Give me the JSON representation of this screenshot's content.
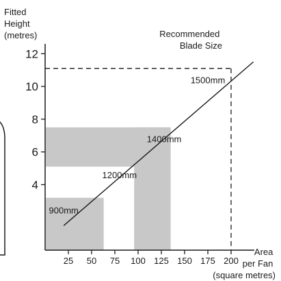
{
  "chart_data": {
    "type": "line",
    "title": "",
    "ylabel_lines": [
      "Fitted",
      "Height",
      "(metres)"
    ],
    "xlabel_lines": [
      "Area",
      "per Fan",
      "(square metres)"
    ],
    "xlim": [
      0,
      225
    ],
    "ylim": [
      0,
      12.6
    ],
    "x_ticks": [
      25,
      50,
      75,
      100,
      125,
      150,
      175,
      200
    ],
    "y_ticks": [
      4,
      6,
      8,
      10,
      12
    ],
    "series": [
      {
        "name": "Recommended Blade Size",
        "points": [
          [
            20,
            1.5
          ],
          [
            224,
            11.5
          ]
        ]
      }
    ],
    "series_label_lines": [
      "Recommended",
      "Blade Size"
    ],
    "regions": [
      {
        "label": "900mm",
        "x": [
          0,
          63
        ],
        "y": [
          0,
          3.2
        ]
      },
      {
        "label": "1200mm",
        "x": [
          0,
          95
        ],
        "y": [
          5.1,
          7.5
        ]
      },
      {
        "label": "1200mm",
        "x": [
          95,
          95
        ],
        "y": [
          0,
          5.1
        ]
      },
      {
        "label": "1400mm",
        "x": [
          95,
          135
        ],
        "y": [
          0,
          7.5
        ]
      },
      {
        "label": "1400mm",
        "x": [
          0,
          95
        ],
        "y": [
          5.1,
          7.5
        ]
      },
      {
        "label": "1500mm",
        "x": [
          135,
          200
        ],
        "y": [
          0,
          11.1
        ]
      }
    ],
    "region_labels": [
      {
        "text": "900mm",
        "x": 20,
        "y": 2.25
      },
      {
        "text": "1200mm",
        "x": 80,
        "y": 4.4
      },
      {
        "text": "1400mm",
        "x": 128,
        "y": 6.6
      },
      {
        "text": "1500mm",
        "x": 175,
        "y": 10.2
      }
    ],
    "reference_lines": [
      {
        "axis": "y",
        "value": 11.1,
        "style": "dashed"
      },
      {
        "axis": "x",
        "value": 200,
        "style": "dashed"
      }
    ],
    "colors": {
      "shade": "#c8c8c8",
      "ink": "#1a1a1a"
    }
  }
}
